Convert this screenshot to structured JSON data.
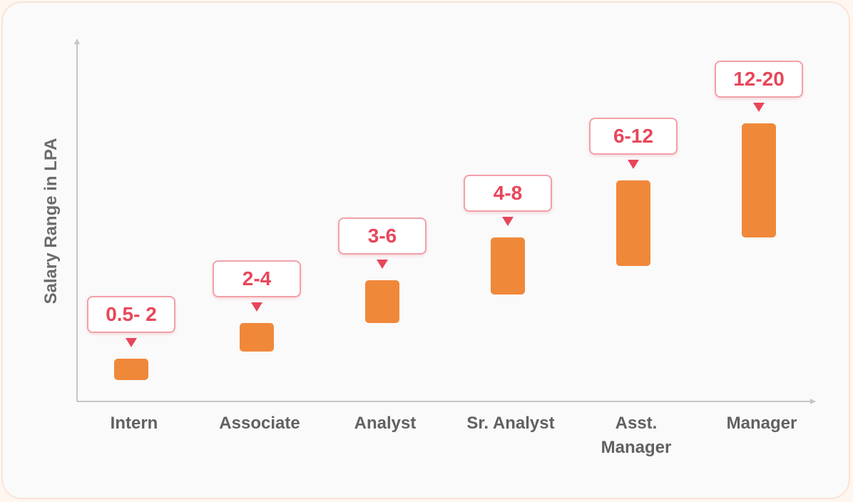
{
  "colors": {
    "bar": "#f0883a",
    "label": "#e8465a",
    "axis": "#c4c4c4"
  },
  "chart_data": {
    "type": "bar",
    "title": "",
    "xlabel": "",
    "ylabel": "Salary Range in LPA",
    "categories": [
      "Intern",
      "Associate",
      "Analyst",
      "Sr. Analyst",
      "Asst. Manager",
      "Manager"
    ],
    "ranges": [
      {
        "category": "Intern",
        "low": 0.5,
        "high": 2,
        "label": "0.5- 2"
      },
      {
        "category": "Associate",
        "low": 2,
        "high": 4,
        "label": "2-4"
      },
      {
        "category": "Analyst",
        "low": 3,
        "high": 6,
        "label": "3-6"
      },
      {
        "category": "Sr. Analyst",
        "low": 4,
        "high": 8,
        "label": "4-8"
      },
      {
        "category": "Asst. Manager",
        "low": 6,
        "high": 12,
        "label": "6-12"
      },
      {
        "category": "Manager",
        "low": 12,
        "high": 20,
        "label": "12-20"
      }
    ],
    "grid": false,
    "legend": "none"
  }
}
